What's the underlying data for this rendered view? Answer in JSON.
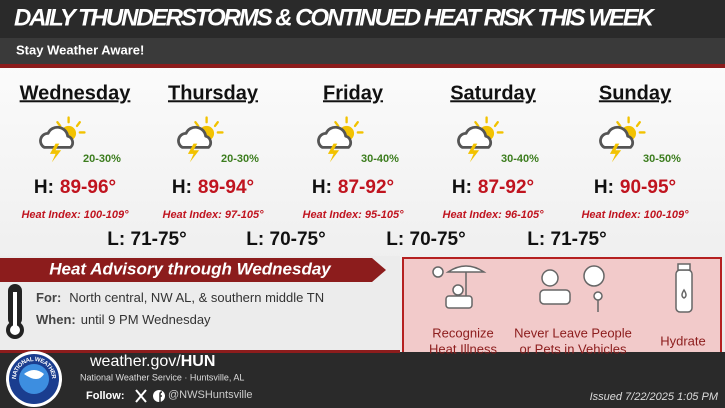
{
  "header": {
    "title": "DAILY THUNDERSTORMS & CONTINUED HEAT RISK THIS WEEK",
    "subtitle": "Stay Weather Aware!"
  },
  "days": [
    {
      "name": "Wednesday",
      "precip": "20-30%",
      "high_label": "H:",
      "high": "89-96°",
      "heat_index": "Heat Index: 100-109°"
    },
    {
      "name": "Thursday",
      "precip": "20-30%",
      "high_label": "H:",
      "high": "89-94°",
      "heat_index": "Heat Index: 97-105°"
    },
    {
      "name": "Friday",
      "precip": "30-40%",
      "high_label": "H:",
      "high": "87-92°",
      "heat_index": "Heat Index: 95-105°"
    },
    {
      "name": "Saturday",
      "precip": "30-40%",
      "high_label": "H:",
      "high": "87-92°",
      "heat_index": "Heat Index: 96-105°"
    },
    {
      "name": "Sunday",
      "precip": "30-50%",
      "high_label": "H:",
      "high": "90-95°",
      "heat_index": "Heat Index: 100-109°"
    }
  ],
  "lows": [
    "L: 71-75°",
    "L: 70-75°",
    "L: 70-75°",
    "L: 71-75°"
  ],
  "advisory": {
    "title": "Heat Advisory through Wednesday",
    "for_label": "For:",
    "for_text": "North central, NW AL, & southern middle TN",
    "when_label": "When:",
    "when_text": "until 9 PM Wednesday"
  },
  "tips": [
    [
      "Recognize",
      "Heat Illness"
    ],
    [
      "Never Leave People",
      "or Pets in Vehicles"
    ],
    [
      "Hydrate"
    ]
  ],
  "footer": {
    "site": "weather.gov/",
    "office": "HUN",
    "org": "National Weather Service · Huntsville, AL",
    "follow": "Follow:",
    "handle": "@NWSHuntsville",
    "issued": "Issued 7/22/2025 1:05 PM",
    "logo_text": "NATIONAL WEATHER SERVICE"
  }
}
